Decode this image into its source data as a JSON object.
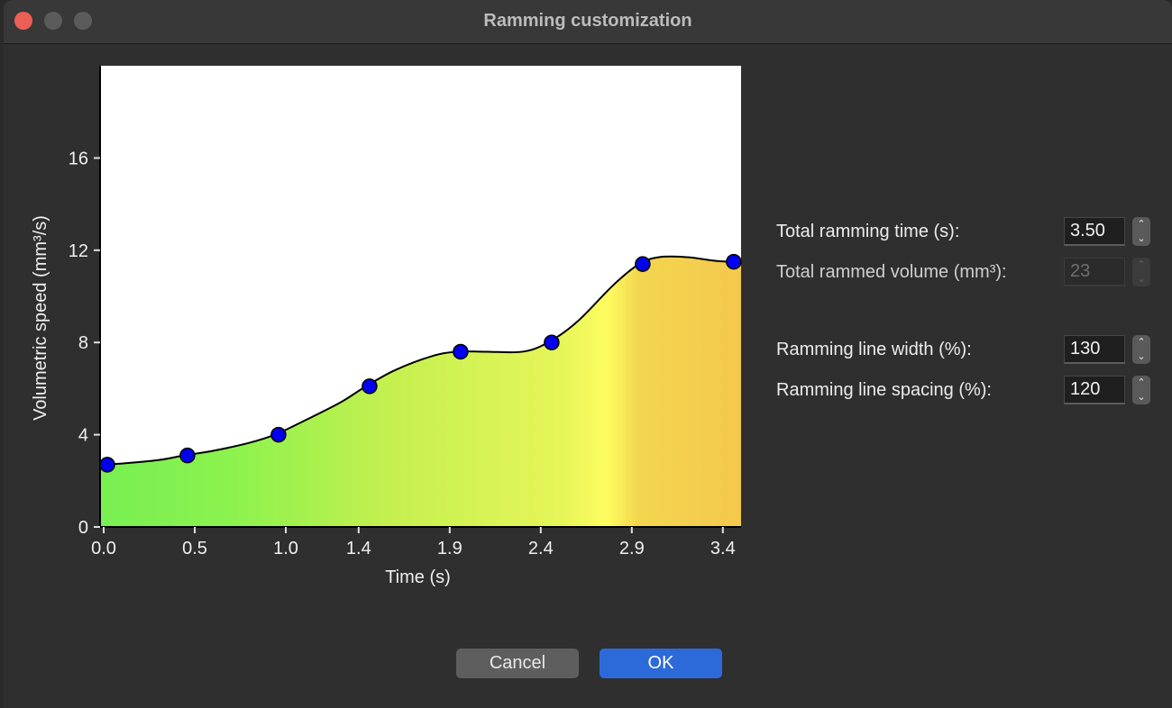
{
  "window": {
    "title": "Ramming customization"
  },
  "chart_data": {
    "type": "area",
    "title": "",
    "xlabel": "Time (s)",
    "ylabel": "Volumetric speed (mm³/s)",
    "x_tick_labels": [
      "0.0",
      "0.5",
      "1.0",
      "1.4",
      "1.9",
      "2.4",
      "2.9",
      "3.4"
    ],
    "x_ticks": [
      0.0,
      0.5,
      1.0,
      1.4,
      1.9,
      2.4,
      2.9,
      3.4
    ],
    "y_tick_labels": [
      "0",
      "4",
      "8",
      "12",
      "16"
    ],
    "y_ticks": [
      0,
      4,
      8,
      12,
      16
    ],
    "xlim": [
      -0.02,
      3.5
    ],
    "ylim": [
      0,
      20
    ],
    "series": [
      {
        "control_points": {
          "x": [
            0.0,
            0.44,
            0.94,
            1.44,
            1.94,
            2.44,
            2.94,
            3.44
          ],
          "y": [
            2.7,
            3.1,
            4.0,
            6.1,
            7.6,
            8.0,
            11.4,
            11.5
          ]
        },
        "curve": {
          "x": [
            -0.02,
            0.1,
            0.3,
            0.44,
            0.6,
            0.8,
            0.94,
            1.1,
            1.3,
            1.44,
            1.6,
            1.8,
            1.94,
            2.1,
            2.3,
            2.44,
            2.6,
            2.8,
            2.94,
            3.05,
            3.2,
            3.35,
            3.44,
            3.5
          ],
          "y": [
            2.7,
            2.75,
            2.9,
            3.1,
            3.3,
            3.65,
            4.0,
            4.6,
            5.4,
            6.1,
            6.8,
            7.4,
            7.6,
            7.6,
            7.6,
            8.0,
            8.9,
            10.5,
            11.4,
            11.7,
            11.7,
            11.55,
            11.5,
            11.5
          ]
        }
      }
    ],
    "fill_gradient": {
      "stops": [
        {
          "at": 0.0,
          "color": "#78ef52"
        },
        {
          "at": 0.2,
          "color": "#8bf24e"
        },
        {
          "at": 0.45,
          "color": "#c4f04f"
        },
        {
          "at": 0.72,
          "color": "#e6f55a"
        },
        {
          "at": 0.79,
          "color": "#fdfd60"
        },
        {
          "at": 0.84,
          "color": "#f3d64f"
        },
        {
          "at": 1.0,
          "color": "#f4c84d"
        }
      ]
    },
    "grid": false,
    "point_color": "#0000ee"
  },
  "settings": {
    "total_ramming_time": {
      "label": "Total ramming time (s):",
      "value": "3.50",
      "enabled": true
    },
    "total_rammed_volume": {
      "label": "Total rammed volume (mm³):",
      "value": "23",
      "enabled": false
    },
    "ramming_line_width": {
      "label": "Ramming line width (%):",
      "value": "130",
      "enabled": true
    },
    "ramming_line_spacing": {
      "label": "Ramming line spacing (%):",
      "value": "120",
      "enabled": true
    }
  },
  "buttons": {
    "cancel": "Cancel",
    "ok": "OK"
  },
  "icons": {
    "spin_up": "⌃",
    "spin_down": "⌄"
  }
}
